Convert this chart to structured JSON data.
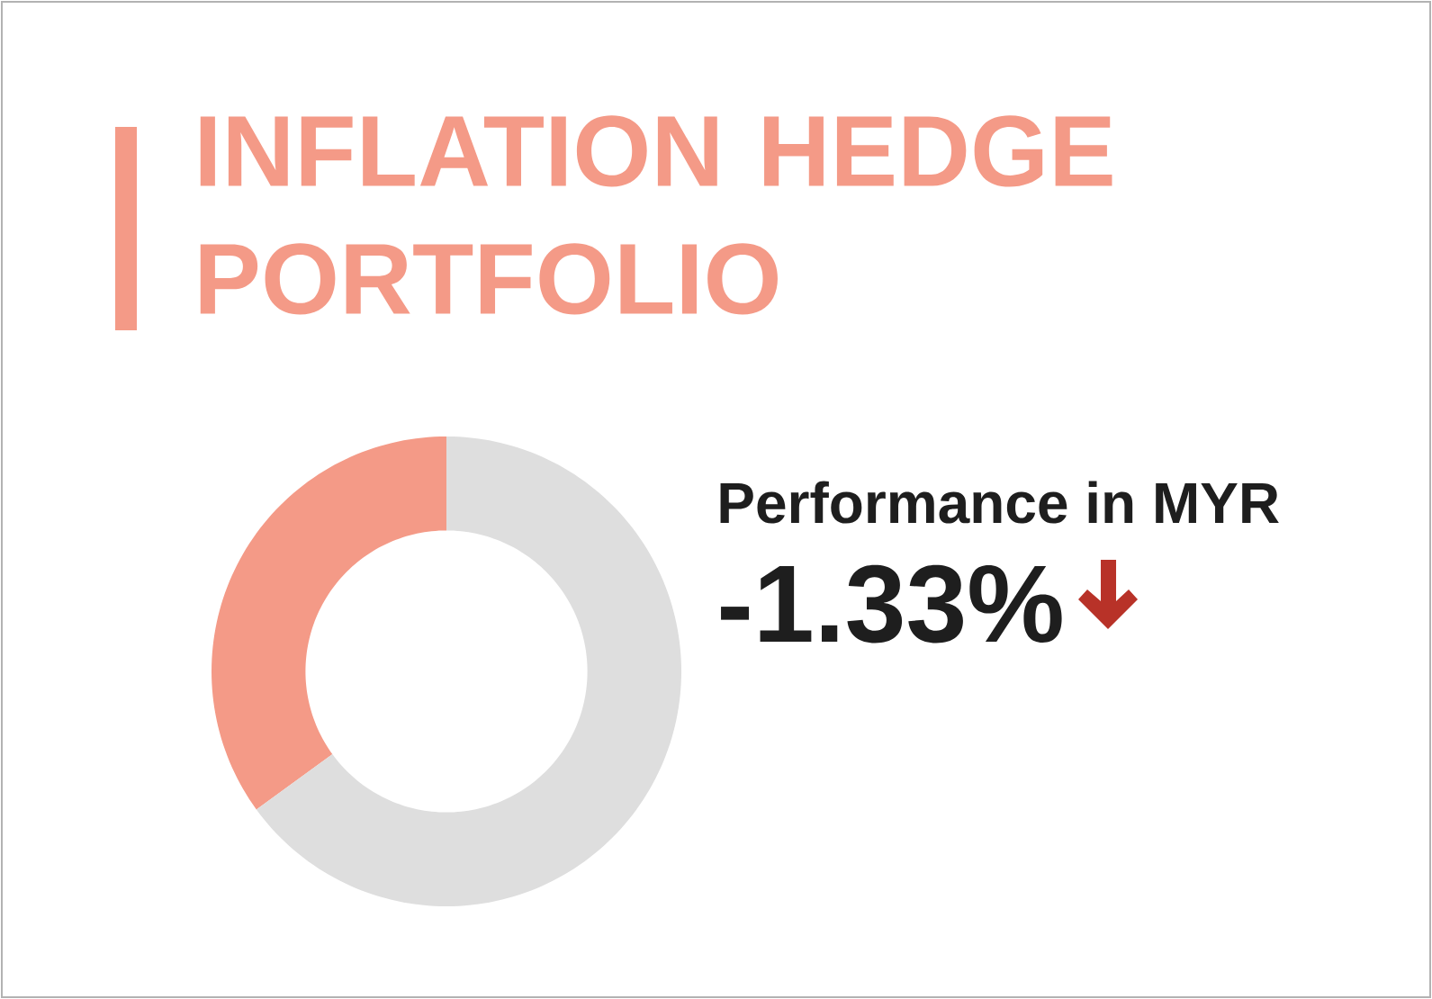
{
  "chart_data": {
    "type": "donut",
    "title": "INFLATION HEDGE PORTFOLIO",
    "categories": [
      null,
      null
    ],
    "values": [
      35,
      65
    ],
    "colors": [
      "#f49a87",
      "#dedede"
    ],
    "annotations": [
      "Performance in MYR",
      "-1.33%"
    ]
  }
}
